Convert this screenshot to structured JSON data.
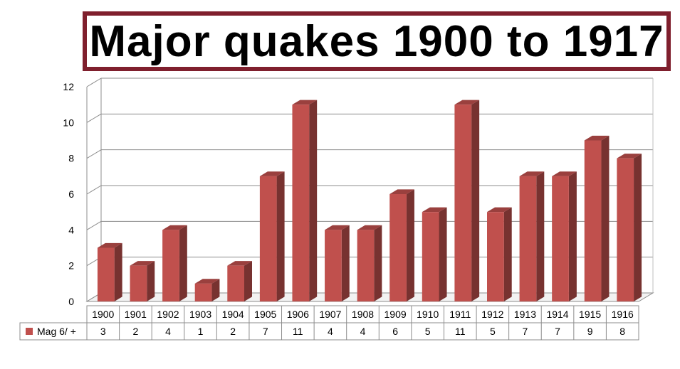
{
  "chart_data": {
    "type": "bar",
    "title": "Major quakes 1900 to 1917",
    "categories": [
      "1900",
      "1901",
      "1902",
      "1903",
      "1904",
      "1905",
      "1906",
      "1907",
      "1908",
      "1909",
      "1910",
      "1911",
      "1912",
      "1913",
      "1914",
      "1915",
      "1916"
    ],
    "series": [
      {
        "name": "Mag 6/ +",
        "values": [
          3,
          2,
          4,
          1,
          2,
          7,
          11,
          4,
          4,
          6,
          5,
          11,
          5,
          7,
          7,
          9,
          8
        ],
        "color": "#c0504d"
      }
    ],
    "ylim": [
      0,
      12
    ],
    "yticks": [
      "0",
      "2",
      "4",
      "6",
      "8",
      "10",
      "12"
    ],
    "grid": true,
    "style_3d": true,
    "data_table": true,
    "title_border_color": "#7f1f2d"
  }
}
